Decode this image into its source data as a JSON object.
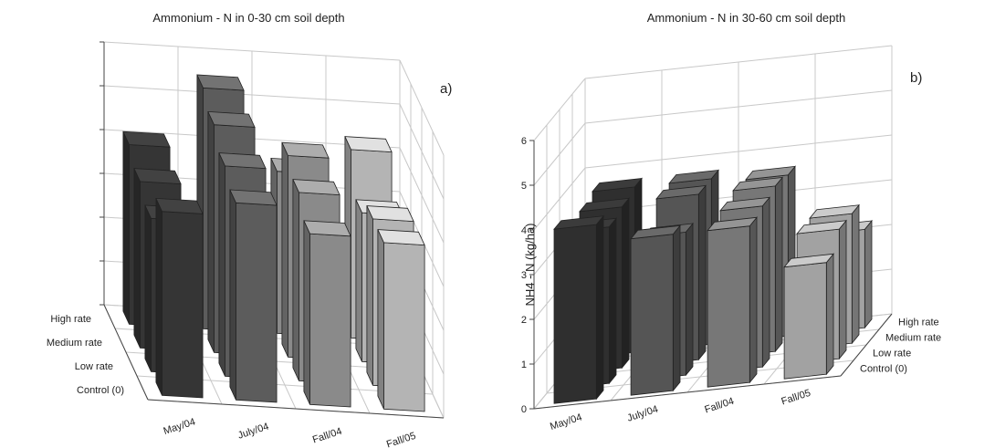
{
  "chart_data": [
    {
      "type": "bar3d",
      "title": "Ammonium - N in 0-30 cm soil depth",
      "panel_label": "a)",
      "categories": [
        "May/04",
        "July/04",
        "Fall/04",
        "Fall/05"
      ],
      "series": [
        {
          "name": "Control (0)",
          "values": [
            4.2,
            4.5,
            3.9,
            3.8
          ]
        },
        {
          "name": "Low rate",
          "values": [
            3.5,
            4.8,
            4.3,
            3.8
          ]
        },
        {
          "name": "Medium rate",
          "values": [
            3.8,
            5.2,
            4.6,
            3.4
          ]
        },
        {
          "name": "High rate",
          "values": [
            4.1,
            5.5,
            3.7,
            4.3
          ]
        }
      ],
      "zlim": [
        0,
        6
      ],
      "ylabel": "",
      "series_axis_side": "left",
      "colors": [
        "#353535",
        "#5c5c5c",
        "#8a8a8a",
        "#b4b4b4"
      ],
      "grid": true
    },
    {
      "type": "bar3d",
      "title": "Ammonium - N in 30-60 cm soil depth",
      "panel_label": "b)",
      "categories": [
        "May/04",
        "July/04",
        "Fall/04",
        "Fall/05"
      ],
      "series": [
        {
          "name": "Control (0)",
          "values": [
            3.9,
            3.5,
            3.5,
            2.5
          ]
        },
        {
          "name": "Low rate",
          "values": [
            3.5,
            3.2,
            3.6,
            2.9
          ]
        },
        {
          "name": "Medium rate",
          "values": [
            3.6,
            3.7,
            3.7,
            2.9
          ]
        },
        {
          "name": "High rate",
          "values": [
            3.7,
            3.7,
            3.6,
            2.2
          ]
        }
      ],
      "zlim": [
        0,
        6
      ],
      "zticks": [
        0,
        1,
        2,
        3,
        4,
        5,
        6
      ],
      "ylabel": "NH4 - N (kg/ha)",
      "series_axis_side": "right",
      "colors": [
        "#2f2f2f",
        "#555555",
        "#777777",
        "#a2a2a2"
      ],
      "grid": true
    }
  ]
}
